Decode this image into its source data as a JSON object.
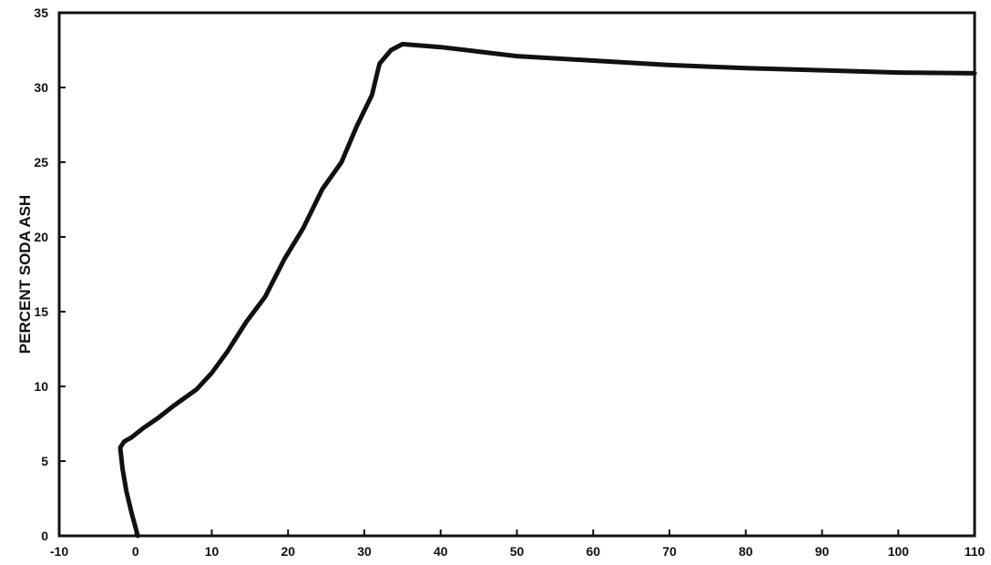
{
  "chart_data": {
    "type": "line",
    "title": "",
    "xlabel": "",
    "ylabel": "PERCENT SODA ASH",
    "xlim": [
      -10,
      110
    ],
    "ylim": [
      0,
      35
    ],
    "x_ticks": [
      -10,
      0,
      10,
      20,
      30,
      40,
      50,
      60,
      70,
      80,
      90,
      100,
      110
    ],
    "x_tick_labels": [
      "-10",
      "0",
      "10",
      "20",
      "30",
      "40",
      "50",
      "60",
      "70",
      "80",
      "90",
      "100",
      "110"
    ],
    "y_ticks": [
      0,
      5,
      10,
      15,
      20,
      25,
      30,
      35
    ],
    "y_tick_labels": [
      "0",
      "5",
      "10",
      "15",
      "20",
      "25",
      "30",
      "35"
    ],
    "grid": false,
    "legend": "none",
    "line_color": "#111111",
    "series": [
      {
        "x": [
          0.3,
          -0.5,
          -1.2,
          -1.7,
          -2.0,
          -1.5,
          -0.5,
          1.0,
          3.0,
          5.0,
          8.0,
          10.0,
          12.0,
          14.5,
          17.0,
          19.5,
          22.0,
          24.5,
          27.0,
          29.0,
          31.0,
          31.8,
          32.0,
          33.5,
          35.0,
          40.0,
          45.0,
          50.0,
          60.0,
          70.0,
          80.0,
          90.0,
          100.0,
          110.0
        ],
        "y": [
          0.0,
          1.5,
          3.0,
          4.5,
          5.9,
          6.3,
          6.6,
          7.2,
          7.9,
          8.7,
          9.8,
          10.9,
          12.3,
          14.3,
          16.0,
          18.5,
          20.6,
          23.2,
          25.0,
          27.4,
          29.5,
          31.2,
          31.6,
          32.5,
          32.9,
          32.7,
          32.4,
          32.1,
          31.8,
          31.5,
          31.3,
          31.15,
          31.0,
          30.95
        ]
      }
    ]
  }
}
